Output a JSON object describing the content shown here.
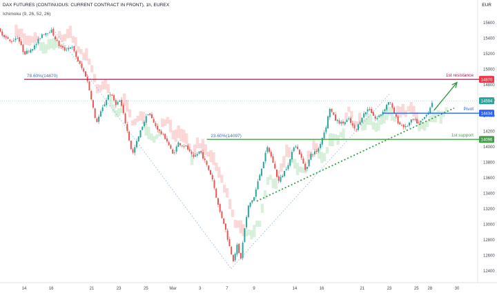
{
  "header": {
    "title": "DAX FUTURES (CONTINUOUS: CURRENT CONTRACT IN FRONT), 1h, EUREX",
    "indicator": "Ichimoku (9, 26, 52, 26)",
    "currency": "EUR"
  },
  "chart_data": {
    "type": "candlestick",
    "title": "DAX FUTURES (CONTINUOUS: CURRENT CONTRACT IN FRONT), 1h, EUREX",
    "ylim": [
      12350,
      15720
    ],
    "y_ticks": [
      15600,
      15400,
      15200,
      15000,
      14800,
      14600,
      14400,
      14200,
      14000,
      13800,
      13600,
      13400,
      13200,
      13000,
      12800,
      12600,
      12400
    ],
    "x_ticks": [
      {
        "label": "14",
        "x": 0
      },
      {
        "label": "16",
        "x": 2
      },
      {
        "label": "21",
        "x": 5
      },
      {
        "label": "23",
        "x": 7
      },
      {
        "label": "25",
        "x": 9
      },
      {
        "label": "Mar",
        "x": 11
      },
      {
        "label": "3",
        "x": 13
      },
      {
        "label": "7",
        "x": 15
      },
      {
        "label": "9",
        "x": 17
      },
      {
        "label": "14",
        "x": 20
      },
      {
        "label": "16",
        "x": 22
      },
      {
        "label": "21",
        "x": 25
      },
      {
        "label": "23",
        "x": 27
      },
      {
        "label": "25",
        "x": 29
      },
      {
        "label": "28",
        "x": 30
      },
      {
        "label": "30",
        "x": 32
      }
    ],
    "price_path": [
      [
        -1.9,
        15500
      ],
      [
        -1.0,
        15350
      ],
      [
        -0.5,
        15420
      ],
      [
        0.0,
        15200
      ],
      [
        0.8,
        15300
      ],
      [
        1.3,
        15450
      ],
      [
        2.0,
        15500
      ],
      [
        2.6,
        15300
      ],
      [
        3.0,
        15250
      ],
      [
        3.5,
        15300
      ],
      [
        4.0,
        15100
      ],
      [
        4.6,
        14900
      ],
      [
        5.0,
        14600
      ],
      [
        5.3,
        14300
      ],
      [
        5.8,
        14500
      ],
      [
        6.3,
        14700
      ],
      [
        6.8,
        14550
      ],
      [
        7.1,
        14600
      ],
      [
        7.5,
        14300
      ],
      [
        8.0,
        13900
      ],
      [
        8.4,
        14100
      ],
      [
        8.8,
        14300
      ],
      [
        9.2,
        14450
      ],
      [
        9.6,
        14300
      ],
      [
        10.0,
        14200
      ],
      [
        10.5,
        14100
      ],
      [
        11.0,
        13900
      ],
      [
        11.4,
        14050
      ],
      [
        12.0,
        14000
      ],
      [
        12.5,
        13850
      ],
      [
        13.0,
        13950
      ],
      [
        13.4,
        13800
      ],
      [
        13.9,
        13600
      ],
      [
        14.4,
        13200
      ],
      [
        14.8,
        13000
      ],
      [
        15.2,
        12700
      ],
      [
        15.5,
        12520
      ],
      [
        15.7,
        12750
      ],
      [
        16.0,
        12540
      ],
      [
        16.3,
        12950
      ],
      [
        16.6,
        13250
      ],
      [
        17.0,
        13350
      ],
      [
        17.5,
        13700
      ],
      [
        18.0,
        14000
      ],
      [
        18.4,
        13800
      ],
      [
        18.8,
        13550
      ],
      [
        19.3,
        13700
      ],
      [
        19.7,
        13850
      ],
      [
        20.0,
        14050
      ],
      [
        20.4,
        13900
      ],
      [
        20.8,
        13700
      ],
      [
        21.2,
        13900
      ],
      [
        21.7,
        13950
      ],
      [
        22.0,
        14100
      ],
      [
        22.3,
        14250
      ],
      [
        22.6,
        14500
      ],
      [
        23.0,
        14350
      ],
      [
        23.5,
        14300
      ],
      [
        24.0,
        14350
      ],
      [
        24.5,
        14200
      ],
      [
        25.0,
        14400
      ],
      [
        25.5,
        14500
      ],
      [
        26.0,
        14350
      ],
      [
        26.5,
        14450
      ],
      [
        27.0,
        14600
      ],
      [
        27.3,
        14450
      ],
      [
        27.7,
        14300
      ],
      [
        28.2,
        14250
      ],
      [
        28.7,
        14350
      ],
      [
        29.2,
        14300
      ],
      [
        29.7,
        14400
      ],
      [
        30.0,
        14500
      ],
      [
        30.2,
        14600
      ]
    ],
    "annotations": [
      {
        "kind": "hline",
        "name": "1st resistance",
        "price": 14870,
        "color": "#ad1457",
        "label": "1st resistance",
        "tag": "14870",
        "tag_color": "#f23645",
        "x_start": 0.0,
        "x_end": 33.7
      },
      {
        "kind": "hline",
        "name": "Pivot",
        "price": 14434,
        "color": "#2962ff",
        "label": "Pivot",
        "tag": "14434",
        "tag_color": "#2962ff",
        "x_start": 26.5,
        "x_end": 33.7
      },
      {
        "kind": "hline",
        "name": "1st support",
        "price": 14096,
        "color": "#43a047",
        "label": "1st support",
        "tag": "14096",
        "tag_color": "#43a047",
        "x_start": 13.5,
        "x_end": 33.7
      },
      {
        "kind": "tag",
        "name": "last price",
        "price": 14594,
        "tag": "14594",
        "tag_color": "#26a69a"
      }
    ],
    "fib_labels": [
      {
        "text": "78.60%(14870)",
        "x": 0.2,
        "price": 14870
      },
      {
        "text": "23.60%(14097)",
        "x": 13.8,
        "price": 14097
      }
    ],
    "fib_lines": [
      [
        [
          2.3,
          15480
        ],
        [
          15.3,
          12430
        ]
      ],
      [
        [
          15.3,
          12430
        ],
        [
          27.0,
          14680
        ]
      ]
    ],
    "trendline": [
      [
        17.2,
        13300
      ],
      [
        31.8,
        14500
      ]
    ],
    "target_arrow": [
      [
        30.3,
        14470
      ],
      [
        32.0,
        14830
      ]
    ]
  }
}
